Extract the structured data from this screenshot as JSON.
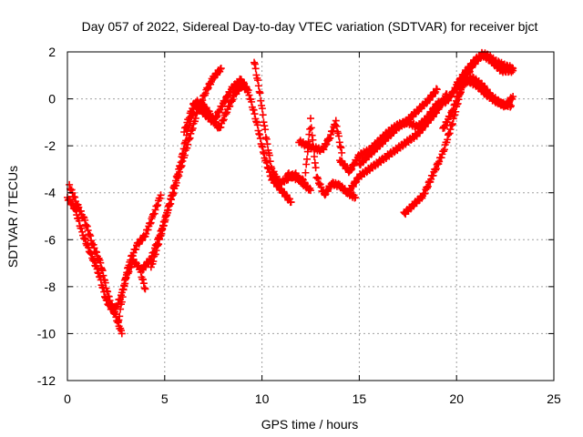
{
  "chart_data": {
    "type": "scatter",
    "title": "Day 057 of 2022, Sidereal Day-to-day VTEC variation (SDTVAR) for receiver bjct",
    "xlabel": "GPS time / hours",
    "ylabel": "SDTVAR / TECUs",
    "xlim": [
      0,
      25
    ],
    "ylim": [
      -12,
      2
    ],
    "xticks": [
      "0",
      "5",
      "10",
      "15",
      "20",
      "25"
    ],
    "yticks": [
      "-12",
      "-10",
      "-8",
      "-6",
      "-4",
      "-2",
      "0",
      "2"
    ],
    "grid": true,
    "legend": "none",
    "marker": "plus",
    "series": [
      {
        "color": "#ff0000",
        "x": [
          0.0,
          0.4,
          0.8,
          1.2,
          1.6,
          2.0,
          2.4,
          2.8,
          3.2,
          3.6,
          4.0,
          4.4,
          4.8
        ],
        "y": [
          -4.2,
          -4.7,
          -5.8,
          -6.6,
          -7.4,
          -8.6,
          -9.1,
          -8.3,
          -6.9,
          -6.2,
          -5.8,
          -5.0,
          -4.1
        ]
      },
      {
        "color": "#ff0000",
        "x": [
          0.1,
          0.5,
          0.9,
          1.3,
          1.7,
          2.1,
          2.5,
          2.8
        ],
        "y": [
          -3.7,
          -4.5,
          -5.2,
          -6.2,
          -7.0,
          -8.4,
          -9.3,
          -10.0
        ]
      },
      {
        "color": "#ff0000",
        "x": [
          2.6,
          3.0,
          3.4,
          3.7,
          4.0
        ],
        "y": [
          -9.6,
          -7.6,
          -6.9,
          -7.2,
          -8.1
        ]
      },
      {
        "color": "#ff0000",
        "x": [
          3.8,
          4.3,
          4.8,
          5.3,
          5.8,
          6.3,
          6.7,
          7.1,
          7.5,
          7.9
        ],
        "y": [
          -7.3,
          -6.8,
          -5.7,
          -4.4,
          -3.0,
          -1.6,
          -0.5,
          0.3,
          0.9,
          1.3
        ]
      },
      {
        "color": "#ff0000",
        "x": [
          4.3,
          4.8,
          5.3,
          5.8,
          6.2,
          6.6,
          7.0,
          7.4,
          7.8,
          8.2,
          8.6,
          9.0,
          9.3,
          9.7,
          10.1,
          10.5,
          11.0,
          11.5
        ],
        "y": [
          -7.2,
          -5.8,
          -4.3,
          -2.8,
          -1.3,
          -0.1,
          -0.3,
          -0.7,
          -1.3,
          -0.5,
          0.2,
          0.6,
          0.3,
          -0.9,
          -2.4,
          -3.4,
          -3.9,
          -4.4
        ]
      },
      {
        "color": "#ff0000",
        "x": [
          6.0,
          6.5,
          7.0,
          7.5,
          8.0,
          8.5,
          8.9,
          9.2
        ],
        "y": [
          -1.4,
          -0.2,
          -0.6,
          -1.0,
          -0.2,
          0.5,
          0.8,
          0.5
        ]
      },
      {
        "color": "#ff0000",
        "x": [
          9.6,
          9.9,
          10.2,
          10.5,
          10.9,
          11.3,
          11.7,
          12.1,
          12.5
        ],
        "y": [
          1.6,
          0.2,
          -1.6,
          -3.0,
          -3.6,
          -3.4,
          -3.2,
          -3.6,
          -3.9
        ]
      },
      {
        "color": "#ff0000",
        "x": [
          11.3,
          11.8,
          12.2,
          12.5,
          12.8,
          13.2,
          13.6,
          14.0,
          14.4,
          14.8
        ],
        "y": [
          -3.2,
          -3.4,
          -3.5,
          -0.9,
          -3.3,
          -4.1,
          -3.6,
          -3.7,
          -4.0,
          -4.2
        ]
      },
      {
        "color": "#ff0000",
        "x": [
          11.9,
          12.3,
          12.7,
          13.1,
          13.5,
          13.8,
          14.1
        ],
        "y": [
          -1.8,
          -2.0,
          -2.1,
          -2.2,
          -1.6,
          -1.0,
          -2.3
        ]
      },
      {
        "color": "#ff0000",
        "x": [
          14.0,
          14.5,
          15.0,
          15.5,
          16.0,
          16.5,
          17.0,
          17.5,
          18.0,
          18.5,
          19.0,
          19.5,
          20.0,
          20.5,
          21.0,
          21.5,
          22.0,
          22.5,
          22.9
        ],
        "y": [
          -2.6,
          -3.1,
          -2.4,
          -2.2,
          -1.8,
          -1.4,
          -1.1,
          -1.0,
          -1.2,
          -0.8,
          -0.2,
          -0.1,
          0.5,
          0.8,
          0.6,
          0.2,
          -0.1,
          -0.3,
          0.1
        ]
      },
      {
        "color": "#ff0000",
        "x": [
          14.5,
          15.0,
          15.5,
          16.0,
          16.5,
          17.0,
          17.5,
          18.0,
          18.5,
          19.0,
          19.5
        ],
        "y": [
          -3.9,
          -3.3,
          -3.0,
          -2.7,
          -2.4,
          -2.1,
          -1.8,
          -1.5,
          -1.0,
          -0.5,
          0.2
        ]
      },
      {
        "color": "#ff0000",
        "x": [
          15.0,
          15.5,
          16.0,
          16.5,
          17.0,
          17.5,
          18.0,
          18.5,
          19.0
        ],
        "y": [
          -2.8,
          -2.4,
          -2.0,
          -1.6,
          -1.2,
          -0.9,
          -0.5,
          -0.1,
          0.4
        ]
      },
      {
        "color": "#ff0000",
        "x": [
          17.3,
          17.8,
          18.3,
          18.8,
          19.3,
          19.8,
          20.3,
          20.8,
          21.3,
          21.8,
          22.3,
          22.8
        ],
        "y": [
          -4.9,
          -4.5,
          -4.1,
          -3.2,
          -2.3,
          -1.0,
          0.6,
          0.9,
          0.6,
          0.1,
          -0.2,
          -0.3
        ]
      },
      {
        "color": "#ff0000",
        "x": [
          19.3,
          19.8,
          20.3,
          20.8,
          21.3,
          21.8,
          22.3,
          22.9
        ],
        "y": [
          -1.3,
          -0.5,
          0.6,
          1.4,
          1.9,
          1.6,
          1.2,
          1.2
        ]
      },
      {
        "color": "#ff0000",
        "x": [
          20.0,
          20.5,
          21.0,
          21.5,
          22.0,
          22.5,
          22.9
        ],
        "y": [
          0.6,
          1.2,
          1.7,
          1.9,
          1.6,
          1.4,
          1.3
        ]
      }
    ]
  }
}
